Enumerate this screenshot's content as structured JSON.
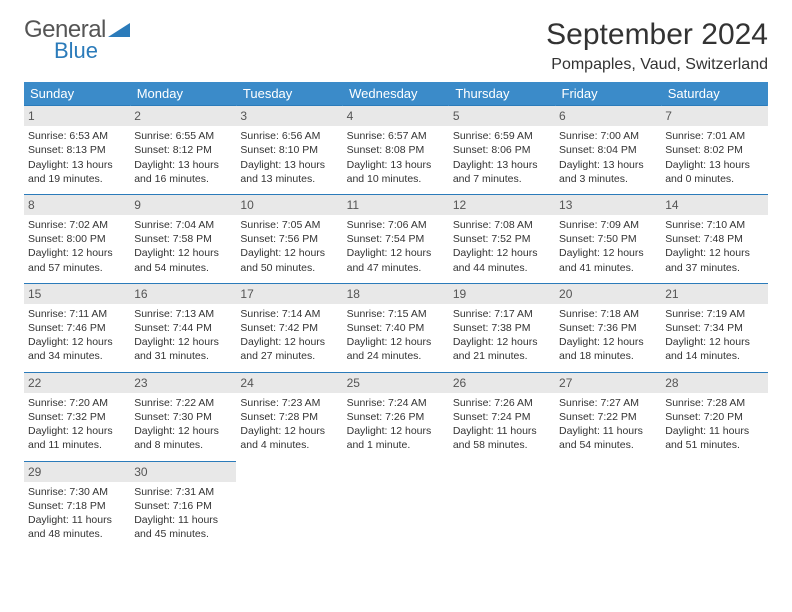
{
  "logo": {
    "main": "General",
    "sub": "Blue"
  },
  "title": "September 2024",
  "location": "Pompaples, Vaud, Switzerland",
  "colors": {
    "header_bg": "#3b8bc9",
    "border": "#2b7bba",
    "daynum_bg": "#e8e8e8",
    "text": "#333333",
    "logo_blue": "#2b7bba"
  },
  "weekdays": [
    "Sunday",
    "Monday",
    "Tuesday",
    "Wednesday",
    "Thursday",
    "Friday",
    "Saturday"
  ],
  "days": [
    {
      "n": "1",
      "sunrise": "Sunrise: 6:53 AM",
      "sunset": "Sunset: 8:13 PM",
      "d1": "Daylight: 13 hours",
      "d2": "and 19 minutes."
    },
    {
      "n": "2",
      "sunrise": "Sunrise: 6:55 AM",
      "sunset": "Sunset: 8:12 PM",
      "d1": "Daylight: 13 hours",
      "d2": "and 16 minutes."
    },
    {
      "n": "3",
      "sunrise": "Sunrise: 6:56 AM",
      "sunset": "Sunset: 8:10 PM",
      "d1": "Daylight: 13 hours",
      "d2": "and 13 minutes."
    },
    {
      "n": "4",
      "sunrise": "Sunrise: 6:57 AM",
      "sunset": "Sunset: 8:08 PM",
      "d1": "Daylight: 13 hours",
      "d2": "and 10 minutes."
    },
    {
      "n": "5",
      "sunrise": "Sunrise: 6:59 AM",
      "sunset": "Sunset: 8:06 PM",
      "d1": "Daylight: 13 hours",
      "d2": "and 7 minutes."
    },
    {
      "n": "6",
      "sunrise": "Sunrise: 7:00 AM",
      "sunset": "Sunset: 8:04 PM",
      "d1": "Daylight: 13 hours",
      "d2": "and 3 minutes."
    },
    {
      "n": "7",
      "sunrise": "Sunrise: 7:01 AM",
      "sunset": "Sunset: 8:02 PM",
      "d1": "Daylight: 13 hours",
      "d2": "and 0 minutes."
    },
    {
      "n": "8",
      "sunrise": "Sunrise: 7:02 AM",
      "sunset": "Sunset: 8:00 PM",
      "d1": "Daylight: 12 hours",
      "d2": "and 57 minutes."
    },
    {
      "n": "9",
      "sunrise": "Sunrise: 7:04 AM",
      "sunset": "Sunset: 7:58 PM",
      "d1": "Daylight: 12 hours",
      "d2": "and 54 minutes."
    },
    {
      "n": "10",
      "sunrise": "Sunrise: 7:05 AM",
      "sunset": "Sunset: 7:56 PM",
      "d1": "Daylight: 12 hours",
      "d2": "and 50 minutes."
    },
    {
      "n": "11",
      "sunrise": "Sunrise: 7:06 AM",
      "sunset": "Sunset: 7:54 PM",
      "d1": "Daylight: 12 hours",
      "d2": "and 47 minutes."
    },
    {
      "n": "12",
      "sunrise": "Sunrise: 7:08 AM",
      "sunset": "Sunset: 7:52 PM",
      "d1": "Daylight: 12 hours",
      "d2": "and 44 minutes."
    },
    {
      "n": "13",
      "sunrise": "Sunrise: 7:09 AM",
      "sunset": "Sunset: 7:50 PM",
      "d1": "Daylight: 12 hours",
      "d2": "and 41 minutes."
    },
    {
      "n": "14",
      "sunrise": "Sunrise: 7:10 AM",
      "sunset": "Sunset: 7:48 PM",
      "d1": "Daylight: 12 hours",
      "d2": "and 37 minutes."
    },
    {
      "n": "15",
      "sunrise": "Sunrise: 7:11 AM",
      "sunset": "Sunset: 7:46 PM",
      "d1": "Daylight: 12 hours",
      "d2": "and 34 minutes."
    },
    {
      "n": "16",
      "sunrise": "Sunrise: 7:13 AM",
      "sunset": "Sunset: 7:44 PM",
      "d1": "Daylight: 12 hours",
      "d2": "and 31 minutes."
    },
    {
      "n": "17",
      "sunrise": "Sunrise: 7:14 AM",
      "sunset": "Sunset: 7:42 PM",
      "d1": "Daylight: 12 hours",
      "d2": "and 27 minutes."
    },
    {
      "n": "18",
      "sunrise": "Sunrise: 7:15 AM",
      "sunset": "Sunset: 7:40 PM",
      "d1": "Daylight: 12 hours",
      "d2": "and 24 minutes."
    },
    {
      "n": "19",
      "sunrise": "Sunrise: 7:17 AM",
      "sunset": "Sunset: 7:38 PM",
      "d1": "Daylight: 12 hours",
      "d2": "and 21 minutes."
    },
    {
      "n": "20",
      "sunrise": "Sunrise: 7:18 AM",
      "sunset": "Sunset: 7:36 PM",
      "d1": "Daylight: 12 hours",
      "d2": "and 18 minutes."
    },
    {
      "n": "21",
      "sunrise": "Sunrise: 7:19 AM",
      "sunset": "Sunset: 7:34 PM",
      "d1": "Daylight: 12 hours",
      "d2": "and 14 minutes."
    },
    {
      "n": "22",
      "sunrise": "Sunrise: 7:20 AM",
      "sunset": "Sunset: 7:32 PM",
      "d1": "Daylight: 12 hours",
      "d2": "and 11 minutes."
    },
    {
      "n": "23",
      "sunrise": "Sunrise: 7:22 AM",
      "sunset": "Sunset: 7:30 PM",
      "d1": "Daylight: 12 hours",
      "d2": "and 8 minutes."
    },
    {
      "n": "24",
      "sunrise": "Sunrise: 7:23 AM",
      "sunset": "Sunset: 7:28 PM",
      "d1": "Daylight: 12 hours",
      "d2": "and 4 minutes."
    },
    {
      "n": "25",
      "sunrise": "Sunrise: 7:24 AM",
      "sunset": "Sunset: 7:26 PM",
      "d1": "Daylight: 12 hours",
      "d2": "and 1 minute."
    },
    {
      "n": "26",
      "sunrise": "Sunrise: 7:26 AM",
      "sunset": "Sunset: 7:24 PM",
      "d1": "Daylight: 11 hours",
      "d2": "and 58 minutes."
    },
    {
      "n": "27",
      "sunrise": "Sunrise: 7:27 AM",
      "sunset": "Sunset: 7:22 PM",
      "d1": "Daylight: 11 hours",
      "d2": "and 54 minutes."
    },
    {
      "n": "28",
      "sunrise": "Sunrise: 7:28 AM",
      "sunset": "Sunset: 7:20 PM",
      "d1": "Daylight: 11 hours",
      "d2": "and 51 minutes."
    },
    {
      "n": "29",
      "sunrise": "Sunrise: 7:30 AM",
      "sunset": "Sunset: 7:18 PM",
      "d1": "Daylight: 11 hours",
      "d2": "and 48 minutes."
    },
    {
      "n": "30",
      "sunrise": "Sunrise: 7:31 AM",
      "sunset": "Sunset: 7:16 PM",
      "d1": "Daylight: 11 hours",
      "d2": "and 45 minutes."
    }
  ]
}
